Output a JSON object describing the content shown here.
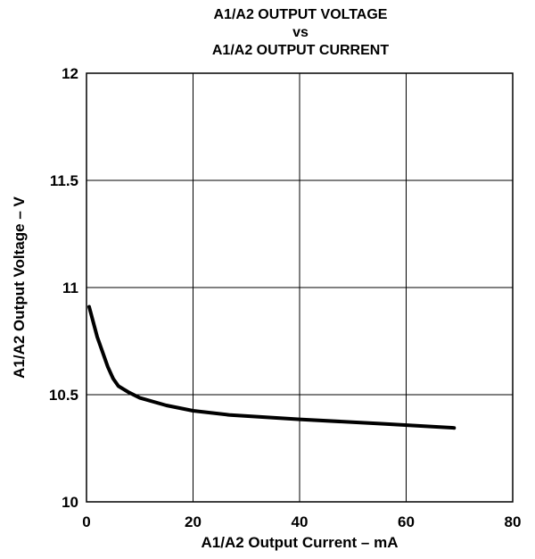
{
  "chart_data": {
    "type": "line",
    "title_lines": [
      "A1/A2 OUTPUT VOLTAGE",
      "vs",
      "A1/A2 OUTPUT CURRENT"
    ],
    "xlabel": "A1/A2 Output Current – mA",
    "ylabel": "A1/A2 Output Voltage – V",
    "xlim": [
      0,
      80
    ],
    "ylim": [
      10,
      12
    ],
    "x_ticks": [
      0,
      20,
      40,
      60,
      80
    ],
    "x_tick_labels": [
      "0",
      "20",
      "40",
      "60",
      "80"
    ],
    "y_ticks": [
      10,
      10.5,
      11,
      11.5,
      12
    ],
    "y_tick_labels": [
      "10",
      "10.5",
      "11",
      "11.5",
      "12"
    ],
    "grid": true,
    "line_color": "#000000",
    "series": [
      {
        "x": [
          0.5,
          2,
          4,
          5,
          6,
          8,
          10,
          15,
          20,
          27,
          40,
          55,
          69
        ],
        "y": [
          10.91,
          10.77,
          10.63,
          10.575,
          10.54,
          10.51,
          10.485,
          10.45,
          10.425,
          10.405,
          10.385,
          10.365,
          10.345
        ]
      }
    ]
  }
}
